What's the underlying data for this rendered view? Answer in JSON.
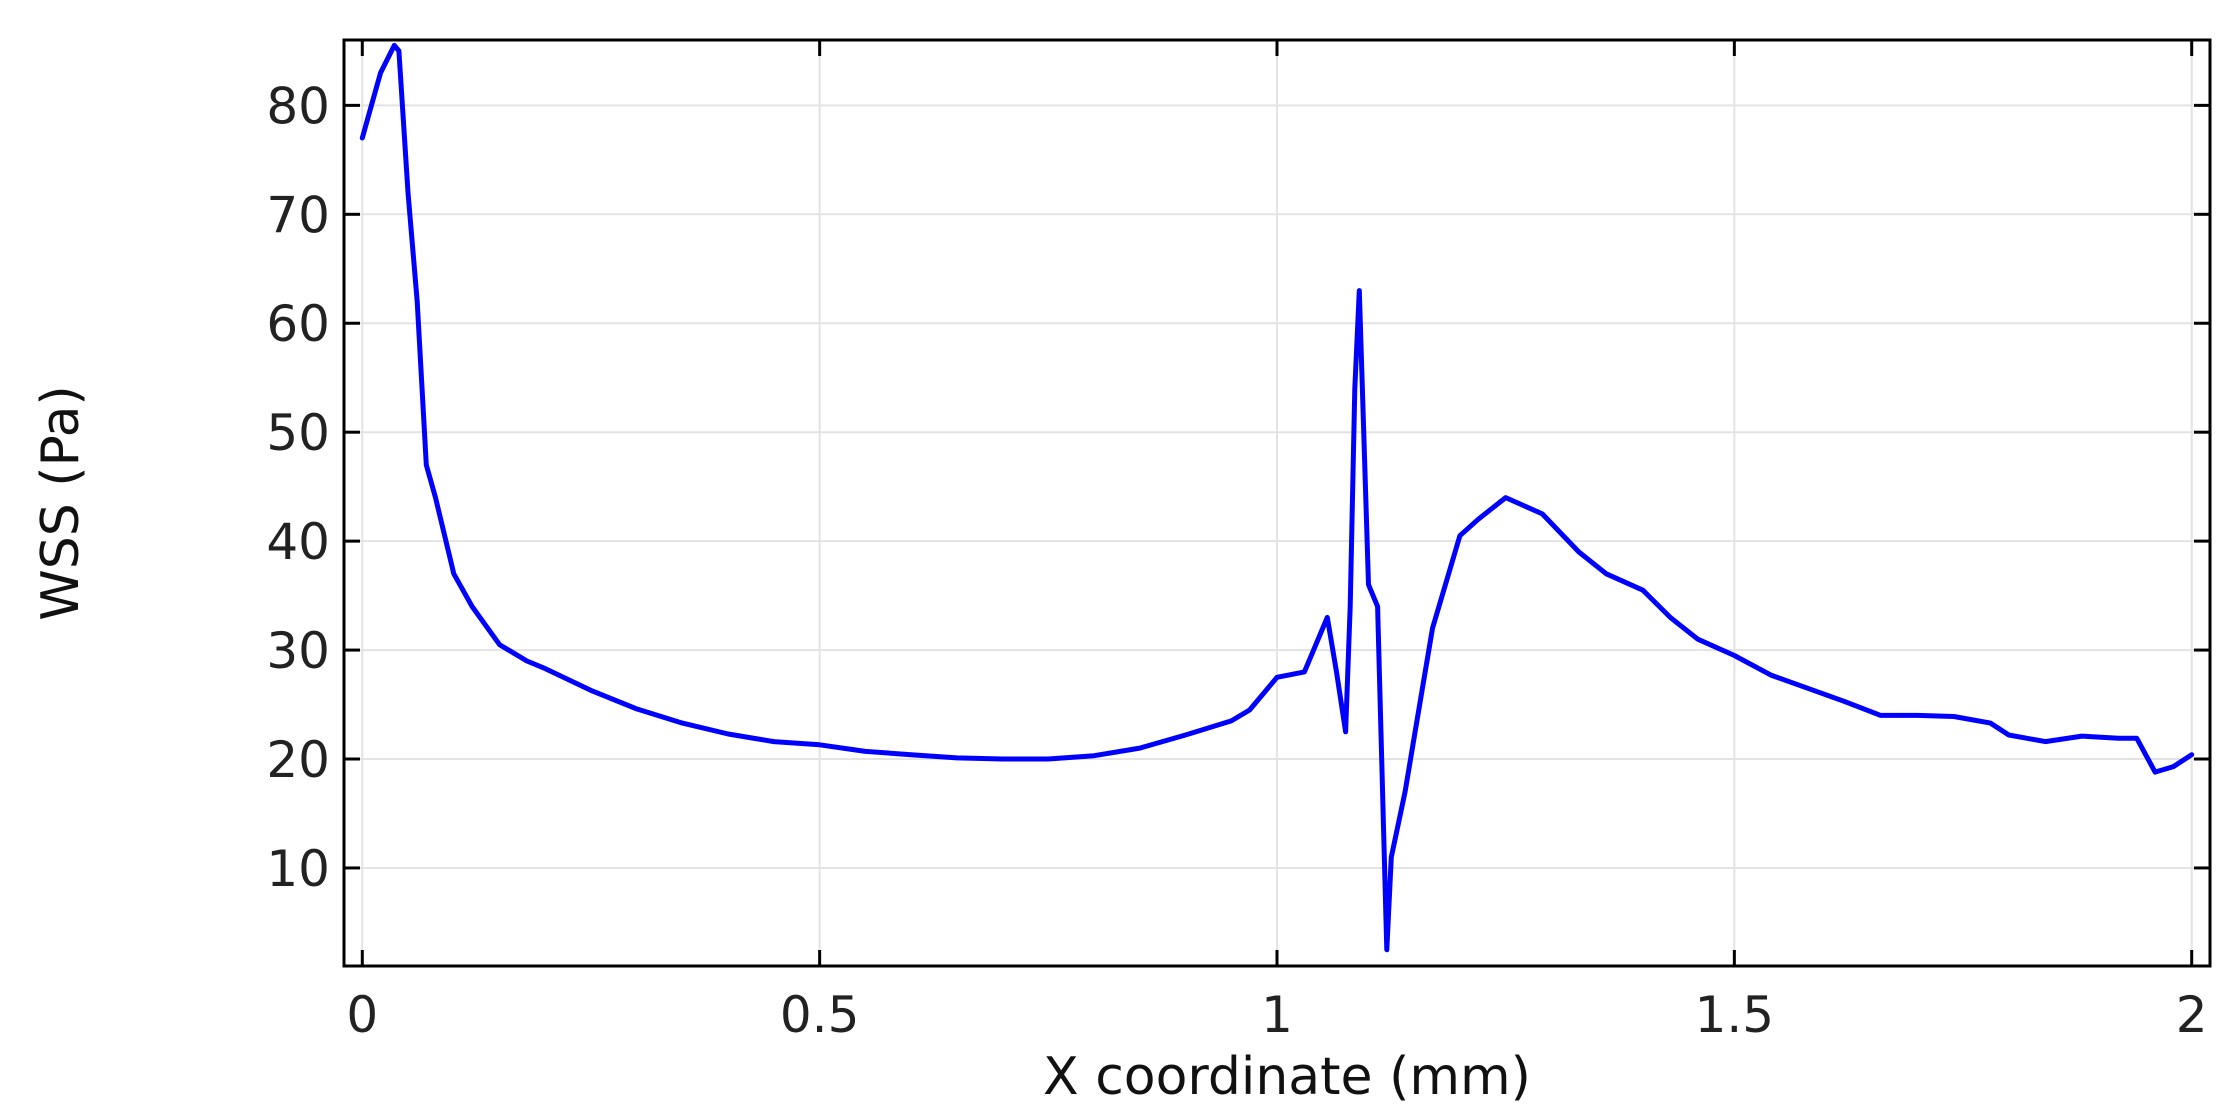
{
  "chart_data": {
    "type": "line",
    "xlabel": "X coordinate (mm)",
    "ylabel": "WSS (Pa)",
    "xlim": [
      -0.02,
      2.02
    ],
    "ylim": [
      1,
      86
    ],
    "xticks": [
      0,
      0.5,
      1,
      1.5,
      2
    ],
    "xtick_labels": [
      "0",
      "0.5",
      "1",
      "1.5",
      "2"
    ],
    "yticks": [
      10,
      20,
      30,
      40,
      50,
      60,
      70,
      80
    ],
    "ytick_labels": [
      "10",
      "20",
      "30",
      "40",
      "50",
      "60",
      "70",
      "80"
    ],
    "grid": true,
    "legend": "none",
    "series": [
      {
        "color": "#0000ff",
        "x": [
          0,
          0.01,
          0.02,
          0.035,
          0.04,
          0.05,
          0.06,
          0.07,
          0.08,
          0.1,
          0.12,
          0.15,
          0.18,
          0.2,
          0.25,
          0.3,
          0.35,
          0.4,
          0.45,
          0.5,
          0.55,
          0.6,
          0.65,
          0.7,
          0.75,
          0.8,
          0.85,
          0.9,
          0.95,
          0.97,
          1.0,
          1.03,
          1.055,
          1.065,
          1.075,
          1.08,
          1.085,
          1.09,
          1.1,
          1.11,
          1.12,
          1.125,
          1.13,
          1.14,
          1.15,
          1.17,
          1.2,
          1.22,
          1.25,
          1.29,
          1.33,
          1.36,
          1.4,
          1.43,
          1.46,
          1.5,
          1.54,
          1.58,
          1.62,
          1.66,
          1.7,
          1.74,
          1.78,
          1.8,
          1.84,
          1.88,
          1.92,
          1.94,
          1.96,
          1.98,
          2.0
        ],
        "y": [
          77,
          80,
          83,
          85.5,
          85,
          72,
          62,
          47,
          44,
          37,
          34,
          30.5,
          29,
          28.3,
          26.3,
          24.6,
          23.3,
          22.3,
          21.6,
          21.3,
          20.7,
          20.4,
          20.1,
          20.0,
          20.0,
          20.3,
          21.0,
          22.2,
          23.5,
          24.5,
          27.5,
          28,
          33,
          28,
          22.5,
          34,
          54,
          63,
          36,
          34,
          2.5,
          11,
          13,
          17,
          22,
          32,
          40.5,
          42,
          44,
          42.5,
          39,
          37,
          35.5,
          33,
          31,
          29.5,
          27.7,
          26.5,
          25.3,
          24.0,
          24.0,
          23.9,
          23.3,
          22.2,
          21.6,
          22.1,
          21.9,
          21.9,
          18.8,
          19.3,
          20.4
        ]
      }
    ]
  }
}
